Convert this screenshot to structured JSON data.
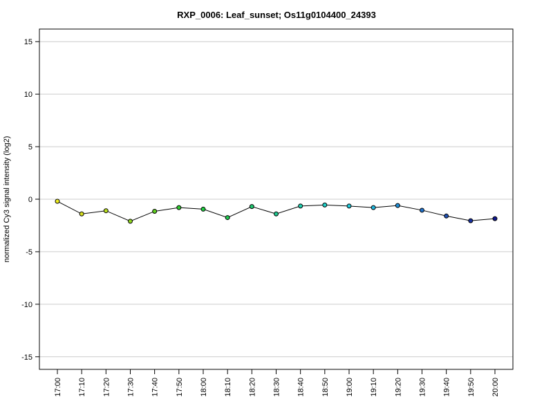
{
  "chart_data": {
    "type": "line",
    "title": "RXP_0006: Leaf_sunset; Os11g0104400_24393",
    "xlabel": "",
    "ylabel": "normalized Cy3 signal intensity (log2)",
    "ylim": [
      -16.2,
      16.2
    ],
    "yticks": [
      -15,
      -10,
      -5,
      0,
      5,
      10,
      15
    ],
    "grid": true,
    "categories": [
      "17:00",
      "17:10",
      "17:20",
      "17:30",
      "17:40",
      "17:50",
      "18:00",
      "18:10",
      "18:20",
      "18:30",
      "18:40",
      "18:50",
      "19:00",
      "19:10",
      "19:20",
      "19:30",
      "19:40",
      "19:50",
      "20:00"
    ],
    "values": [
      -0.2,
      -1.4,
      -1.1,
      -2.1,
      -1.15,
      -0.8,
      -0.95,
      -1.75,
      -0.7,
      -1.4,
      -0.65,
      -0.55,
      -0.65,
      -0.8,
      -0.6,
      -1.05,
      -1.6,
      -2.05,
      -1.85
    ],
    "point_colors": [
      "#f0f020",
      "#d8e020",
      "#b8dc20",
      "#90d820",
      "#60d020",
      "#30cc30",
      "#20cc40",
      "#20c850",
      "#20c870",
      "#20c890",
      "#20d0b0",
      "#20d0c8",
      "#20c8d8",
      "#20b8e0",
      "#2090d8",
      "#2070c8",
      "#2050b0",
      "#1830a0",
      "#101890"
    ]
  }
}
